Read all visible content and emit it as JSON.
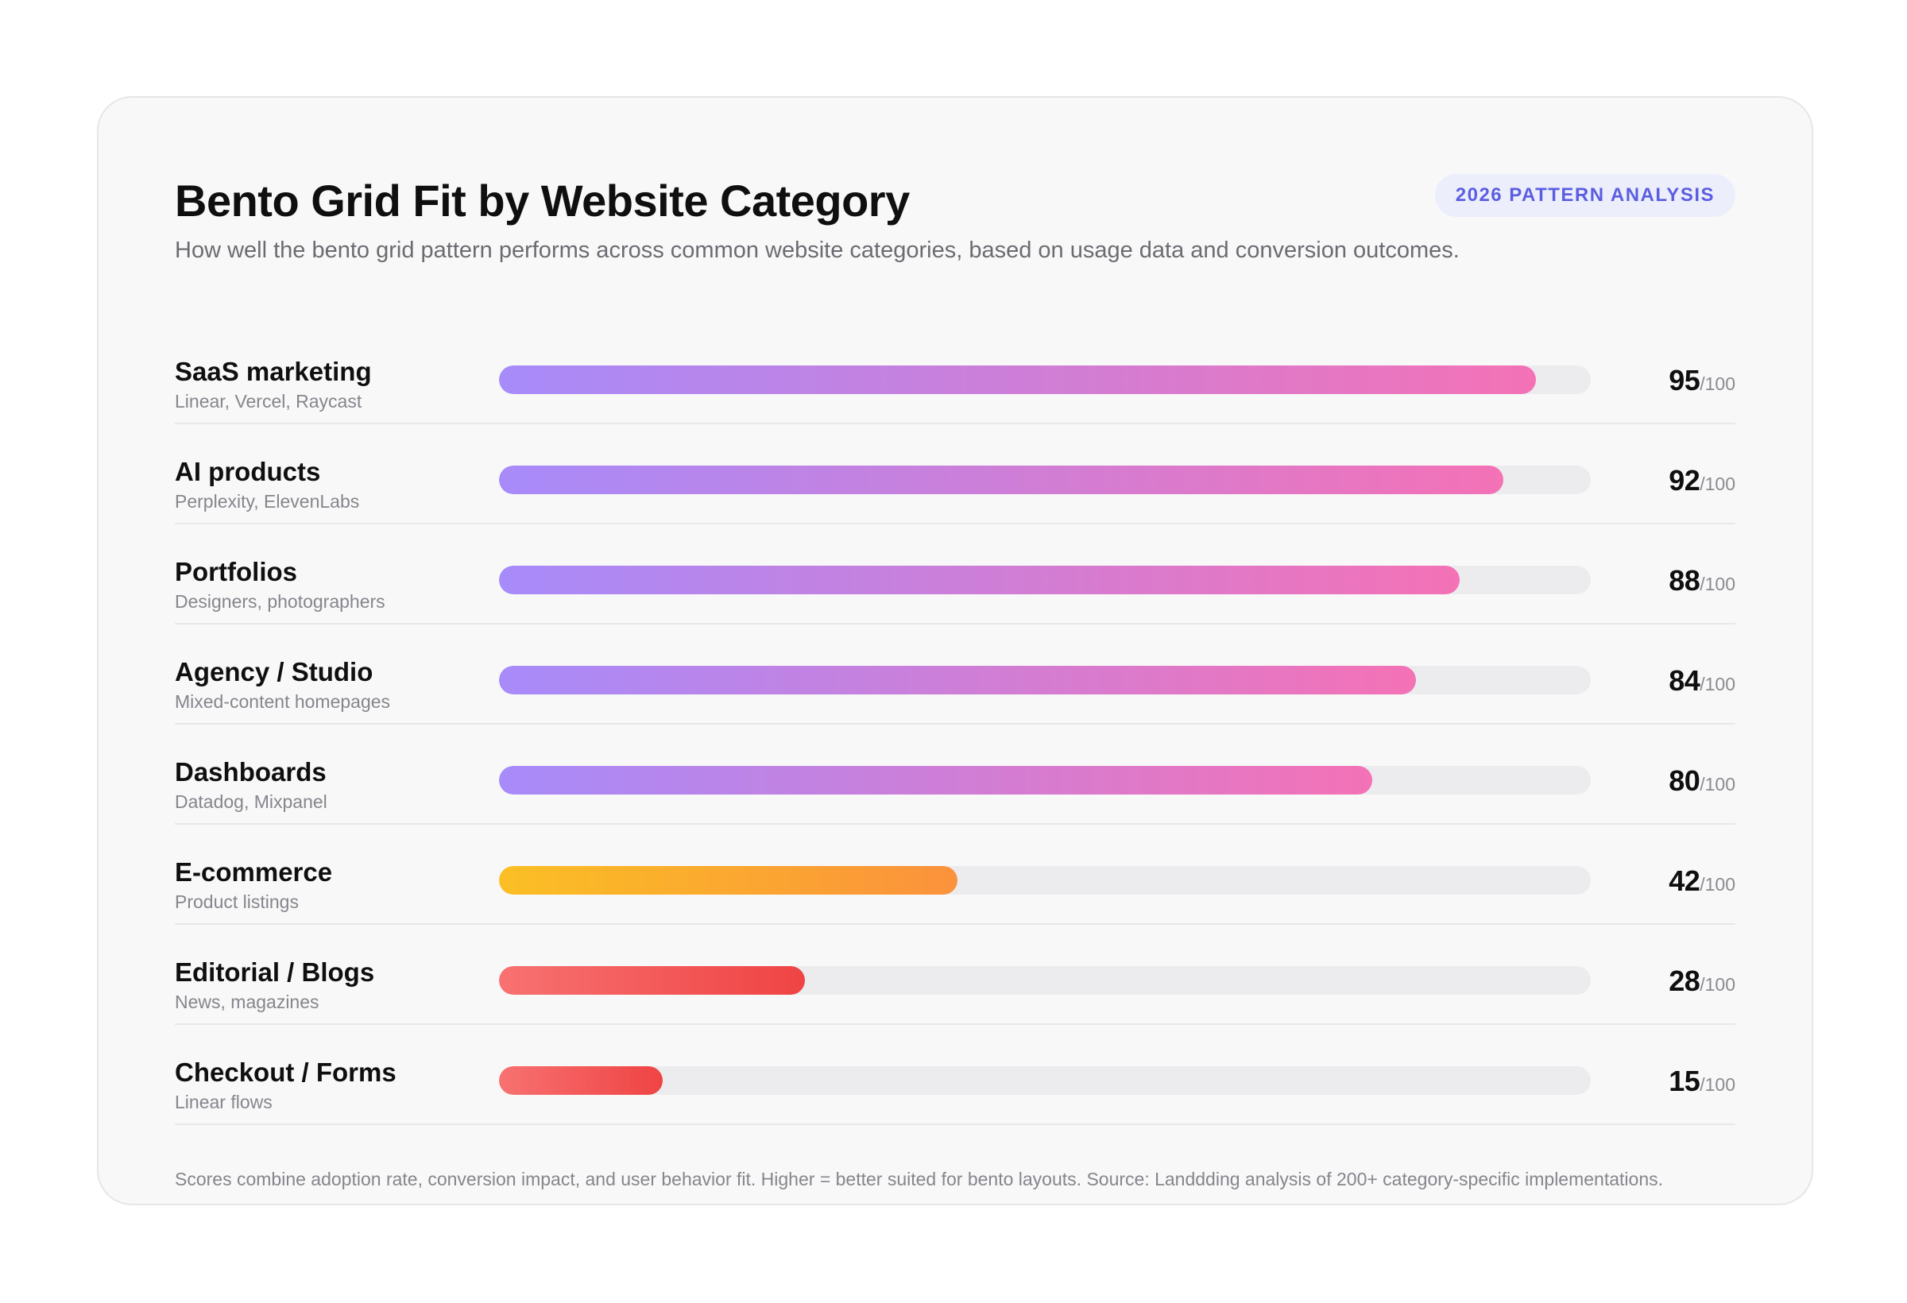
{
  "header": {
    "title": "Bento Grid Fit by Website Category",
    "subtitle": "How well the bento grid pattern performs across common website categories, based on usage data and conversion outcomes.",
    "badge": "2026 PATTERN ANALYSIS"
  },
  "chart_data": {
    "type": "bar",
    "orientation": "horizontal",
    "title": "Bento Grid Fit by Website Category",
    "xlim": [
      0,
      100
    ],
    "max_label": "/100",
    "categories": [
      "SaaS marketing",
      "AI products",
      "Portfolios",
      "Agency / Studio",
      "Dashboards",
      "E-commerce",
      "Editorial / Blogs",
      "Checkout / Forms"
    ],
    "descriptions": [
      "Linear, Vercel, Raycast",
      "Perplexity, ElevenLabs",
      "Designers, photographers",
      "Mixed-content homepages",
      "Datadog, Mixpanel",
      "Product listings",
      "News, magazines",
      "Linear flows"
    ],
    "values": [
      95,
      92,
      88,
      84,
      80,
      42,
      28,
      15
    ],
    "bar_colors": [
      [
        "#a78bfa",
        "#f472b6"
      ],
      [
        "#a78bfa",
        "#f472b6"
      ],
      [
        "#a78bfa",
        "#f472b6"
      ],
      [
        "#a78bfa",
        "#f472b6"
      ],
      [
        "#a78bfa",
        "#f472b6"
      ],
      [
        "#fbbf24",
        "#fb923c"
      ],
      [
        "#f87171",
        "#ef4444"
      ],
      [
        "#f87171",
        "#ef4444"
      ]
    ],
    "track_color": "#ececef"
  },
  "footnote": "Scores combine adoption rate, conversion impact, and user behavior fit. Higher = better suited for bento layouts. Source: Landdding analysis of 200+ category-specific implementations."
}
